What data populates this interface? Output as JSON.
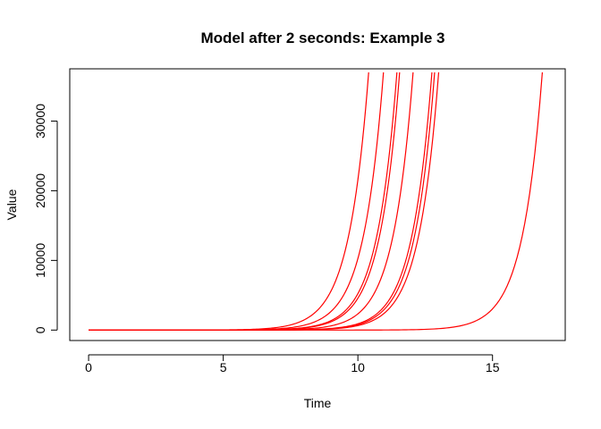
{
  "chart_data": {
    "type": "line",
    "title": "Model after 2 seconds: Example 3",
    "xlabel": "Time",
    "ylabel": "Value",
    "xlim": [
      -0.7,
      17.7
    ],
    "ylim": [
      -1500,
      37500
    ],
    "xticks": [
      0,
      5,
      10,
      15
    ],
    "yticks": [
      0,
      10000,
      20000,
      30000
    ],
    "line_color": "#ff0000",
    "growth_model": "exponential",
    "series": [
      {
        "x_start": 0,
        "x_end": 10.4,
        "y_end": 37000
      },
      {
        "x_start": 0,
        "x_end": 10.95,
        "y_end": 37000
      },
      {
        "x_start": 0,
        "x_end": 11.45,
        "y_end": 37000
      },
      {
        "x_start": 0,
        "x_end": 11.55,
        "y_end": 37000
      },
      {
        "x_start": 0,
        "x_end": 12.05,
        "y_end": 37000
      },
      {
        "x_start": 0,
        "x_end": 12.75,
        "y_end": 37000
      },
      {
        "x_start": 0,
        "x_end": 12.85,
        "y_end": 37000
      },
      {
        "x_start": 0,
        "x_end": 13.0,
        "y_end": 37000
      },
      {
        "x_start": 0,
        "x_end": 16.85,
        "y_end": 37000
      }
    ]
  }
}
